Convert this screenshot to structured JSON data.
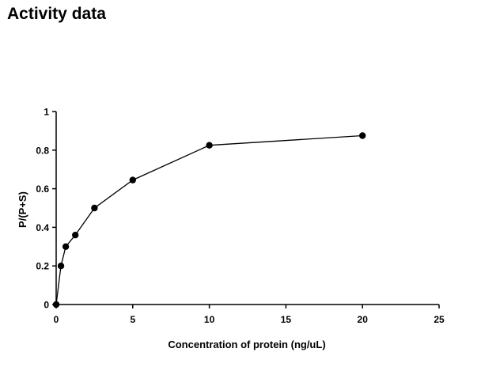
{
  "page": {
    "title": "Activity data"
  },
  "chart_data": {
    "type": "line",
    "title": "",
    "xlabel": "Concentration of protein (ng/uL)",
    "ylabel": "P/(P+S)",
    "xlim": [
      0,
      25
    ],
    "ylim": [
      0,
      1
    ],
    "x_ticks": [
      0,
      5,
      10,
      15,
      20,
      25
    ],
    "y_ticks": [
      0,
      0.2,
      0.4,
      0.6,
      0.8,
      1
    ],
    "x_tick_labels": [
      "0",
      "5",
      "10",
      "15",
      "20",
      "25"
    ],
    "y_tick_labels": [
      "0",
      "0.2",
      "0.4",
      "0.6",
      "0.8",
      "1"
    ],
    "grid": false,
    "legend": "none",
    "colors": {
      "line": "#000000",
      "marker": "#000000",
      "axis": "#000000"
    },
    "series": [
      {
        "x": [
          0,
          0.3125,
          0.625,
          1.25,
          2.5,
          5,
          10,
          20
        ],
        "y": [
          0,
          0.2,
          0.3,
          0.36,
          0.5,
          0.645,
          0.825,
          0.875
        ]
      }
    ]
  }
}
